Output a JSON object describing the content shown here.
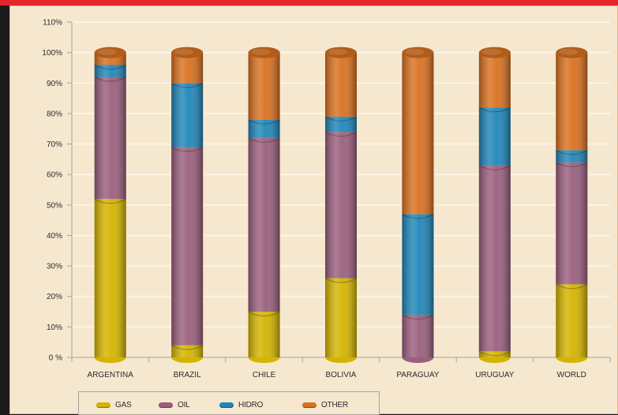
{
  "chart_data": {
    "type": "bar",
    "stacked": true,
    "percent": true,
    "categories": [
      "ARGENTINA",
      "BRAZIL",
      "CHILE",
      "BOLIVIA",
      "PARAGUAY",
      "URUGUAY",
      "WORLD"
    ],
    "series": [
      {
        "name": "GAS",
        "color": "#d4b400",
        "values": [
          52,
          4,
          15,
          26,
          0,
          2,
          24
        ]
      },
      {
        "name": "OIL",
        "color": "#9a5f7d",
        "values": [
          40,
          65,
          57,
          48,
          14,
          61,
          40
        ]
      },
      {
        "name": "HIDRO",
        "color": "#1f86b9",
        "values": [
          4,
          21,
          6,
          5,
          33,
          19,
          4
        ]
      },
      {
        "name": "OTHER",
        "color": "#d9711f",
        "values": [
          4,
          10,
          22,
          21,
          53,
          18,
          32
        ]
      }
    ],
    "y_ticks": [
      "0 %",
      "10%",
      "20%",
      "30%",
      "40%",
      "50%",
      "60%",
      "70%",
      "80%",
      "90%",
      "100%",
      "110%"
    ],
    "ylim": [
      0,
      110
    ],
    "grid": true,
    "legend_position": "bottom-left"
  },
  "colors": {
    "background": "#f6e8cf",
    "grid": "#fbf4e6",
    "axis": "#a9a39b",
    "frame": "#e4262c"
  }
}
